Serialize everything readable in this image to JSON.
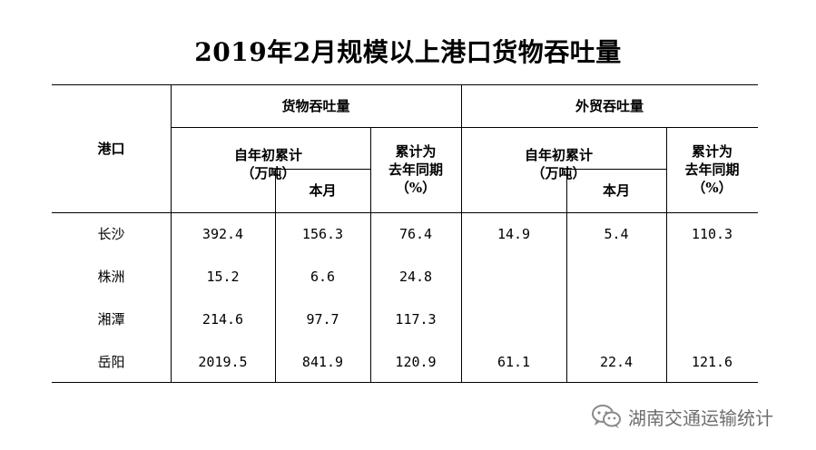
{
  "title": "2019年2月规模以上港口货物吞吐量",
  "headers": {
    "port": "港口",
    "cargo_group": "货物吞吐量",
    "trade_group": "外贸吞吐量",
    "cumulative": "自年初累计\n（万吨）",
    "month": "本月",
    "yoy": "累计为\n去年同期\n（%）"
  },
  "rows": [
    {
      "port": "长沙",
      "cargo_cum": "392.4",
      "cargo_month": "156.3",
      "cargo_yoy": "76.4",
      "trade_cum": "14.9",
      "trade_month": "5.4",
      "trade_yoy": "110.3"
    },
    {
      "port": "株洲",
      "cargo_cum": "15.2",
      "cargo_month": "6.6",
      "cargo_yoy": "24.8",
      "trade_cum": "",
      "trade_month": "",
      "trade_yoy": ""
    },
    {
      "port": "湘潭",
      "cargo_cum": "214.6",
      "cargo_month": "97.7",
      "cargo_yoy": "117.3",
      "trade_cum": "",
      "trade_month": "",
      "trade_yoy": ""
    },
    {
      "port": "岳阳",
      "cargo_cum": "2019.5",
      "cargo_month": "841.9",
      "cargo_yoy": "120.9",
      "trade_cum": "61.1",
      "trade_month": "22.4",
      "trade_yoy": "121.6"
    }
  ],
  "watermark": {
    "text": "湖南交通运输统计",
    "icon": "wechat-icon",
    "color": "#6e6e6e"
  }
}
